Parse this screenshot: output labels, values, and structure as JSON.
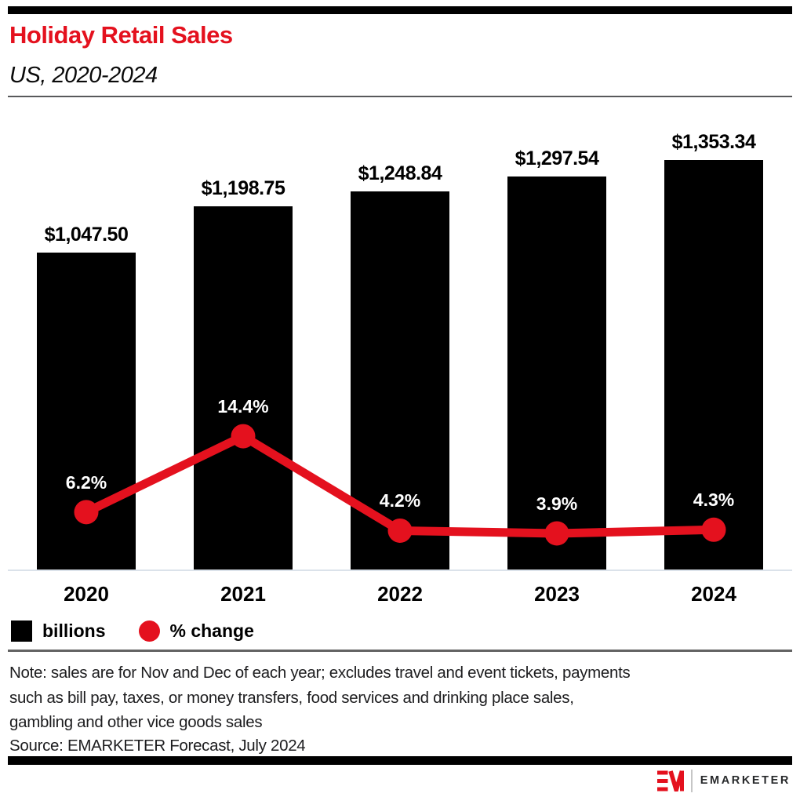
{
  "header": {
    "title": "Holiday Retail Sales",
    "subtitle": "US, 2020-2024"
  },
  "chart_data": {
    "type": "bar",
    "subtype": "combo_bar_line",
    "title": "Holiday Retail Sales",
    "subtitle": "US, 2020-2024",
    "categories": [
      "2020",
      "2021",
      "2022",
      "2023",
      "2024"
    ],
    "series": [
      {
        "name": "billions",
        "type": "bar",
        "color": "#000000",
        "values": [
          1047.5,
          1198.75,
          1248.84,
          1297.54,
          1353.34
        ],
        "labels": [
          "$1,047.50",
          "$1,198.75",
          "$1,248.84",
          "$1,297.54",
          "$1,353.34"
        ]
      },
      {
        "name": "% change",
        "type": "line",
        "color": "#e4111e",
        "values": [
          6.2,
          14.4,
          4.2,
          3.9,
          4.3
        ],
        "labels": [
          "6.2%",
          "14.4%",
          "4.2%",
          "3.9%",
          "4.3%"
        ]
      }
    ],
    "xlabel": "",
    "ylabel": "",
    "ylim_bar": [
      0,
      1500
    ],
    "ylim_line": [
      0,
      20
    ],
    "grid": false,
    "legend_position": "bottom-left"
  },
  "legend": {
    "items": [
      {
        "label": "billions",
        "swatch": "square",
        "color": "#000000"
      },
      {
        "label": "% change",
        "swatch": "circle",
        "color": "#e4111e"
      }
    ]
  },
  "footer": {
    "note_lines": [
      "Note: sales are for Nov and Dec of each year; excludes travel and event tickets, payments",
      "such as bill pay, taxes, or money transfers, food services and drinking place sales,",
      "gambling and other vice goods sales"
    ],
    "source": "Source: EMARKETER Forecast, July 2024",
    "logo_text": "EMARKETER"
  },
  "colors": {
    "accent_red": "#e4111e",
    "bar_black": "#000000",
    "axis_line": "#dbe2ea"
  }
}
